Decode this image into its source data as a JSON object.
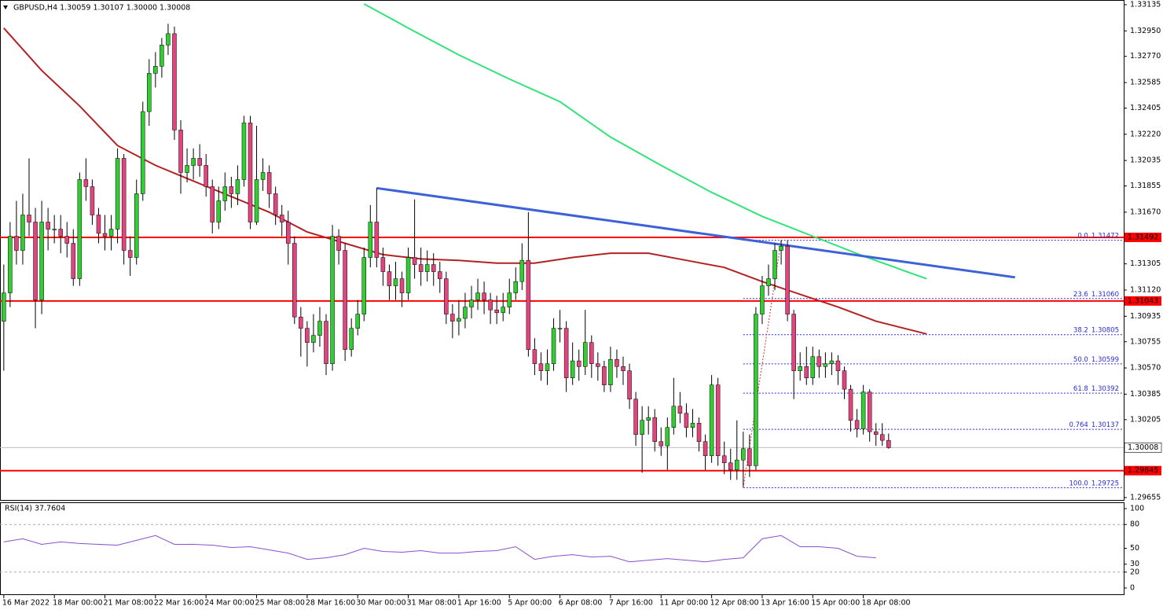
{
  "chart_data": {
    "type": "candlestick",
    "header": "GBPUSD,H4 1.30059 1.30107 1.30000 1.30008",
    "up_color": "#32cd32",
    "down_color": "#e2457e",
    "wick_color": "#000000",
    "xlim": [
      -0.6,
      177.2
    ],
    "ylim": [
      1.29638,
      1.33168
    ],
    "yticks": [
      1.33135,
      {
        "value": 1.3295,
        "label": "1.32950"
      },
      {
        "value": 1.3277,
        "label": "1.32770"
      },
      1.32585,
      1.32405,
      {
        "value": 1.3222,
        "label": "1.32220"
      },
      1.32035,
      1.31855,
      {
        "value": 1.3167,
        "label": "1.31670"
      },
      1.31305,
      {
        "value": 1.3112,
        "label": "1.31120"
      },
      1.30935,
      1.30755,
      {
        "value": 1.3057,
        "label": "1.30570"
      },
      1.30385,
      1.30205,
      1.29655
    ],
    "categories": [
      "16 Mar 2022",
      null,
      null,
      null,
      null,
      null,
      null,
      null,
      "18 Mar 00:00",
      null,
      null,
      null,
      null,
      null,
      null,
      null,
      "21 Mar 08:00",
      null,
      null,
      null,
      null,
      null,
      null,
      null,
      "22 Mar 16:00",
      null,
      null,
      null,
      null,
      null,
      null,
      null,
      "24 Mar 00:00",
      null,
      null,
      null,
      null,
      null,
      null,
      null,
      "25 Mar 08:00",
      null,
      null,
      null,
      null,
      null,
      null,
      null,
      "28 Mar 16:00",
      null,
      null,
      null,
      null,
      null,
      null,
      null,
      "30 Mar 00:00",
      null,
      null,
      null,
      null,
      null,
      null,
      null,
      "31 Mar 08:00",
      null,
      null,
      null,
      null,
      null,
      null,
      null,
      "1 Apr 16:00",
      null,
      null,
      null,
      null,
      null,
      null,
      null,
      "5 Apr 00:00",
      null,
      null,
      null,
      null,
      null,
      null,
      null,
      "6 Apr 08:00",
      null,
      null,
      null,
      null,
      null,
      null,
      null,
      "7 Apr 16:00",
      null,
      null,
      null,
      null,
      null,
      null,
      null,
      "11 Apr 00:00",
      null,
      null,
      null,
      null,
      null,
      null,
      null,
      "12 Apr 08:00",
      null,
      null,
      null,
      null,
      null,
      null,
      null,
      "13 Apr 16:00",
      null,
      null,
      null,
      null,
      null,
      null,
      null,
      "15 Apr 00:00",
      null,
      null,
      null,
      null,
      null,
      null,
      null,
      "18 Apr 08:00",
      null,
      null,
      null,
      null
    ],
    "open": [
      1.309,
      1.311,
      1.315,
      1.314,
      1.3165,
      1.316,
      1.3105,
      1.316,
      1.3155,
      1.3155,
      1.315,
      1.3145,
      1.312,
      1.319,
      1.3185,
      1.3165,
      1.3152,
      1.315,
      1.3155,
      1.3205,
      1.314,
      1.3135,
      1.318,
      1.3238,
      1.3265,
      1.327,
      1.3285,
      1.3293,
      1.3225,
      1.3195,
      1.32,
      1.3205,
      1.32,
      1.3185,
      1.316,
      1.3175,
      1.3185,
      1.318,
      1.319,
      1.323,
      1.316,
      1.319,
      1.3195,
      1.318,
      1.3165,
      1.316,
      1.3145,
      1.3093,
      1.3085,
      1.3075,
      1.308,
      1.309,
      1.306,
      1.315,
      1.314,
      1.307,
      1.3085,
      1.3095,
      1.3135,
      1.316,
      1.3135,
      1.3125,
      1.3115,
      1.312,
      1.311,
      1.3135,
      1.313,
      1.3125,
      1.313,
      1.3125,
      1.312,
      1.3095,
      1.309,
      1.3092,
      1.31,
      1.3105,
      1.311,
      1.3105,
      1.3098,
      1.3096,
      1.31,
      1.311,
      1.3118,
      1.3133,
      1.307,
      1.306,
      1.3055,
      1.306,
      1.3085,
      1.3085,
      1.305,
      1.3062,
      1.3058,
      1.3075,
      1.306,
      1.3058,
      1.3045,
      1.3063,
      1.3058,
      1.3055,
      1.3035,
      1.301,
      1.302,
      1.3022,
      1.3005,
      1.3002,
      1.3015,
      1.303,
      1.3025,
      1.3015,
      1.3018,
      1.3005,
      1.2995,
      1.3045,
      1.2995,
      1.299,
      1.2985,
      1.2992,
      1.3,
      1.2988,
      1.3095,
      1.3115,
      1.312,
      1.314,
      1.3143,
      1.3095,
      1.3055,
      1.3058,
      1.305,
      1.3065,
      1.3058,
      1.306,
      1.3062,
      1.3055,
      1.3042,
      1.302,
      1.3014,
      1.304,
      1.3012,
      1.301,
      1.30059
    ],
    "high": [
      1.313,
      1.316,
      1.3175,
      1.318,
      1.3205,
      1.317,
      1.3175,
      1.317,
      1.3165,
      1.3165,
      1.316,
      1.3155,
      1.3195,
      1.3205,
      1.319,
      1.317,
      1.3165,
      1.3165,
      1.3212,
      1.3208,
      1.315,
      1.319,
      1.3245,
      1.3275,
      1.328,
      1.329,
      1.33,
      1.3298,
      1.3232,
      1.3212,
      1.3212,
      1.3215,
      1.3208,
      1.319,
      1.3185,
      1.3195,
      1.3192,
      1.32,
      1.3235,
      1.3235,
      1.3228,
      1.3205,
      1.32,
      1.3185,
      1.3172,
      1.3168,
      1.315,
      1.31,
      1.309,
      1.3095,
      1.31,
      1.3095,
      1.3158,
      1.3155,
      1.3145,
      1.3092,
      1.3105,
      1.3142,
      1.3172,
      1.3184,
      1.3142,
      1.313,
      1.3132,
      1.3125,
      1.3142,
      1.3176,
      1.3142,
      1.314,
      1.3138,
      1.3132,
      1.3125,
      1.3102,
      1.3105,
      1.311,
      1.3115,
      1.312,
      1.3118,
      1.311,
      1.3108,
      1.311,
      1.312,
      1.3128,
      1.3145,
      1.3167,
      1.3078,
      1.3068,
      1.307,
      1.3092,
      1.3098,
      1.309,
      1.3075,
      1.307,
      1.3098,
      1.308,
      1.3068,
      1.3062,
      1.3072,
      1.307,
      1.3065,
      1.306,
      1.304,
      1.303,
      1.303,
      1.3028,
      1.3015,
      1.3022,
      1.305,
      1.304,
      1.3032,
      1.3028,
      1.3022,
      1.301,
      1.3052,
      1.305,
      1.3005,
      1.3,
      1.302,
      1.3012,
      1.301,
      1.31,
      1.3122,
      1.313,
      1.3145,
      1.3147,
      1.3147,
      1.3098,
      1.3068,
      1.3072,
      1.3072,
      1.307,
      1.3068,
      1.3068,
      1.3066,
      1.3058,
      1.3045,
      1.3028,
      1.3045,
      1.3042,
      1.3018,
      1.3018,
      1.30107
    ],
    "low": [
      1.3055,
      1.31,
      1.313,
      1.313,
      1.315,
      1.3085,
      1.3095,
      1.314,
      1.3145,
      1.3138,
      1.3135,
      1.3115,
      1.3115,
      1.3175,
      1.3158,
      1.3145,
      1.314,
      1.314,
      1.3145,
      1.313,
      1.3122,
      1.313,
      1.3175,
      1.3228,
      1.3255,
      1.3262,
      1.3278,
      1.3218,
      1.318,
      1.3188,
      1.319,
      1.3192,
      1.3178,
      1.3152,
      1.3155,
      1.3168,
      1.317,
      1.3172,
      1.3185,
      1.3155,
      1.3158,
      1.3182,
      1.317,
      1.3158,
      1.315,
      1.313,
      1.3088,
      1.3065,
      1.3058,
      1.3068,
      1.3072,
      1.3052,
      1.3055,
      1.313,
      1.3062,
      1.3065,
      1.308,
      1.309,
      1.3128,
      1.3128,
      1.3115,
      1.3105,
      1.3105,
      1.31,
      1.3105,
      1.312,
      1.3115,
      1.3118,
      1.3115,
      1.311,
      1.3088,
      1.3078,
      1.308,
      1.3085,
      1.3092,
      1.3098,
      1.3095,
      1.3088,
      1.3088,
      1.309,
      1.3095,
      1.3105,
      1.3112,
      1.3065,
      1.3052,
      1.3048,
      1.3045,
      1.3055,
      1.3075,
      1.304,
      1.3045,
      1.3048,
      1.3052,
      1.305,
      1.3048,
      1.304,
      1.304,
      1.305,
      1.3045,
      1.3028,
      1.3002,
      1.2983,
      1.301,
      1.2998,
      1.2995,
      1.2985,
      1.301,
      1.3018,
      1.3008,
      1.3008,
      1.2998,
      1.2985,
      1.299,
      1.2988,
      1.2982,
      1.2978,
      1.2978,
      1.2973,
      1.298,
      1.2985,
      1.3088,
      1.3108,
      1.3112,
      1.313,
      1.309,
      1.3035,
      1.3048,
      1.3045,
      1.3045,
      1.305,
      1.305,
      1.3052,
      1.3045,
      1.3035,
      1.3012,
      1.3008,
      1.301,
      1.3005,
      1.3002,
      1.3002,
      1.3
    ],
    "close": [
      1.311,
      1.315,
      1.314,
      1.3165,
      1.316,
      1.3105,
      1.316,
      1.3155,
      1.3155,
      1.315,
      1.3145,
      1.312,
      1.319,
      1.3185,
      1.3165,
      1.3152,
      1.315,
      1.3155,
      1.3205,
      1.314,
      1.3135,
      1.318,
      1.3238,
      1.3265,
      1.327,
      1.3285,
      1.3293,
      1.3225,
      1.3195,
      1.32,
      1.3205,
      1.32,
      1.3185,
      1.316,
      1.3175,
      1.3185,
      1.318,
      1.319,
      1.323,
      1.316,
      1.319,
      1.3195,
      1.318,
      1.3165,
      1.316,
      1.3145,
      1.3093,
      1.3085,
      1.3075,
      1.308,
      1.309,
      1.306,
      1.315,
      1.314,
      1.307,
      1.3085,
      1.3095,
      1.3135,
      1.316,
      1.3135,
      1.3125,
      1.3115,
      1.312,
      1.311,
      1.3135,
      1.313,
      1.3125,
      1.313,
      1.3125,
      1.312,
      1.3095,
      1.309,
      1.3092,
      1.31,
      1.3105,
      1.311,
      1.3105,
      1.3098,
      1.3096,
      1.31,
      1.311,
      1.3118,
      1.3133,
      1.307,
      1.306,
      1.3055,
      1.306,
      1.3085,
      1.3085,
      1.305,
      1.3062,
      1.3058,
      1.3075,
      1.306,
      1.3058,
      1.3045,
      1.3063,
      1.3058,
      1.3055,
      1.3035,
      1.301,
      1.302,
      1.3022,
      1.3005,
      1.3002,
      1.3015,
      1.303,
      1.3025,
      1.3015,
      1.3018,
      1.3005,
      1.2995,
      1.3045,
      1.2995,
      1.299,
      1.2985,
      1.2992,
      1.3,
      1.2988,
      1.3095,
      1.3115,
      1.312,
      1.314,
      1.3143,
      1.3095,
      1.3055,
      1.3058,
      1.305,
      1.3065,
      1.3058,
      1.306,
      1.3062,
      1.3055,
      1.3042,
      1.302,
      1.3014,
      1.304,
      1.3012,
      1.301,
      1.30059,
      1.30008
    ],
    "lines": [
      {
        "color": "#b22222",
        "width": 2,
        "x": [
          0,
          6,
          12,
          18,
          24,
          30,
          36,
          42,
          48,
          54,
          60,
          66,
          72,
          78,
          84,
          90,
          96,
          102,
          108,
          114,
          120,
          126,
          132,
          138,
          146
        ],
        "values": [
          1.3297,
          1.3267,
          1.3242,
          1.3214,
          1.32,
          1.3189,
          1.3178,
          1.3167,
          1.3153,
          1.3145,
          1.3137,
          1.3134,
          1.3133,
          1.3131,
          1.3131,
          1.3135,
          1.3138,
          1.3138,
          1.3133,
          1.3128,
          1.3118,
          1.3109,
          1.31,
          1.309,
          1.3081
        ]
      },
      {
        "color": "#32e37a",
        "width": 2,
        "x": [
          57,
          64,
          72,
          80,
          88,
          96,
          104,
          112,
          120,
          128,
          136,
          146
        ],
        "values": [
          1.3314,
          1.3297,
          1.3278,
          1.3261,
          1.3245,
          1.322,
          1.32,
          1.3181,
          1.3164,
          1.315,
          1.3136,
          1.312
        ]
      },
      {
        "color": "#3d62d8",
        "width": 3,
        "x": [
          59,
          160
        ],
        "values": [
          1.3184,
          1.3121
        ]
      }
    ],
    "price_lines": [
      {
        "value": 1.31492,
        "color": "#ff0000"
      },
      {
        "value": 1.31043,
        "color": "#ff0000"
      },
      {
        "value": 1.29845,
        "color": "#ff0000"
      }
    ],
    "current_price": 1.30008,
    "fibonacci": {
      "color": "#2a2ad0",
      "anchor_color": "#e03030",
      "x": [
        117,
        123
      ],
      "levels": [
        {
          "level": "0.0",
          "price": 1.31472
        },
        {
          "level": "23.6",
          "price": {
            "value": 1.3106,
            "label": "1.31060"
          }
        },
        {
          "level": "38.2",
          "price": 1.30805
        },
        {
          "level": "50.0",
          "price": 1.30599
        },
        {
          "level": "61.8",
          "price": 1.30392
        },
        {
          "level": "0.764",
          "price": 1.30137
        },
        {
          "level": "100.0",
          "price": 1.29725
        }
      ]
    },
    "rsi": {
      "header": "RSI(14) 37.7604",
      "color": "#8a4fd0",
      "ylim": [
        0,
        100
      ],
      "yticks": [
        100,
        80,
        50,
        30,
        20,
        0
      ],
      "levels": [
        80,
        20
      ],
      "x": [
        0,
        3,
        6,
        9,
        12,
        15,
        18,
        21,
        24,
        27,
        30,
        33,
        36,
        39,
        42,
        45,
        48,
        51,
        54,
        57,
        60,
        63,
        66,
        69,
        72,
        75,
        78,
        81,
        84,
        87,
        90,
        93,
        96,
        99,
        102,
        105,
        108,
        111,
        114,
        117,
        120,
        123,
        126,
        129,
        132,
        135,
        138
      ],
      "values": [
        58,
        62,
        55,
        58,
        56,
        55,
        54,
        60,
        66,
        55,
        55,
        54,
        51,
        52,
        48,
        44,
        36,
        38,
        42,
        50,
        46,
        45,
        47,
        44,
        44,
        46,
        47,
        52,
        36,
        40,
        42,
        39,
        40,
        33,
        35,
        37,
        35,
        33,
        36,
        38,
        62,
        66,
        52,
        52,
        50,
        40,
        38
      ]
    }
  }
}
